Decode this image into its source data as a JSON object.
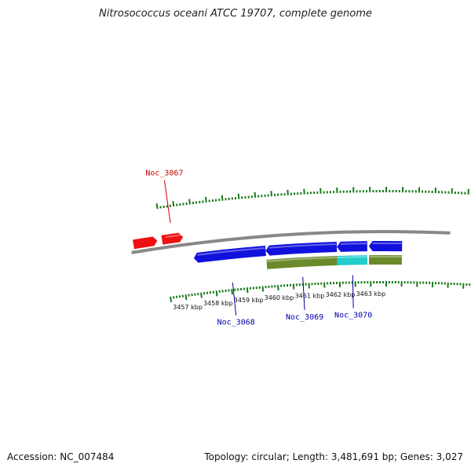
{
  "title": "Nitrosococcus oceani ATCC 19707, complete genome",
  "footer": {
    "accession": "Accession: NC_007484",
    "summary": "Topology: circular; Length: 3,481,691 bp; Genes: 3,027"
  },
  "colors": {
    "forward_gene": "#ee1111",
    "reverse_gene": "#1111dd",
    "reverse_gene_alt": "#22cccc",
    "feature_track": "#6b8a2c",
    "backbone": "#888888",
    "ticks": "#1a7a1a",
    "label_forward": "#cc0000",
    "label_reverse": "#0000aa"
  },
  "ruler": {
    "labels": [
      {
        "kbp": 3457,
        "text": "3457 kbp"
      },
      {
        "kbp": 3458,
        "text": "3458 kbp"
      },
      {
        "kbp": 3459,
        "text": "3459 kbp"
      },
      {
        "kbp": 3460,
        "text": "3460 kbp"
      },
      {
        "kbp": 3461,
        "text": "3461 kbp"
      },
      {
        "kbp": 3462,
        "text": "3462 kbp"
      },
      {
        "kbp": 3463,
        "text": "3463 kbp"
      }
    ]
  },
  "genes": [
    {
      "name": "Noc_3067",
      "strand": "forward",
      "start_kbp": 3456.5,
      "end_kbp": 3457.16
    },
    {
      "name": "Noc_3068",
      "strand": "reverse",
      "start_kbp": 3457.41,
      "end_kbp": 3459.69
    },
    {
      "name": "Noc_3069",
      "strand": "reverse",
      "start_kbp": 3459.69,
      "end_kbp": 3461.94
    },
    {
      "name": "Noc_3070",
      "strand": "reverse",
      "start_kbp": 3461.94,
      "end_kbp": 3462.9
    },
    {
      "name": "",
      "strand": "reverse",
      "start_kbp": 3462.95,
      "end_kbp": 3464.0
    }
  ],
  "features": [
    {
      "start_kbp": 3459.69,
      "end_kbp": 3461.94,
      "color": "#6b8a2c"
    },
    {
      "start_kbp": 3461.94,
      "end_kbp": 3462.9,
      "color": "#22cccc"
    },
    {
      "start_kbp": 3462.95,
      "end_kbp": 3464.0,
      "color": "#6b8a2c"
    }
  ],
  "gene_labels": [
    {
      "gene": "Noc_3067",
      "text": "Noc_3067",
      "side": "above"
    },
    {
      "gene": "Noc_3068",
      "text": "Noc_3068",
      "side": "below"
    },
    {
      "gene": "Noc_3069",
      "text": "Noc_3069",
      "side": "below"
    },
    {
      "gene": "Noc_3070",
      "text": "Noc_3070",
      "side": "below"
    }
  ]
}
